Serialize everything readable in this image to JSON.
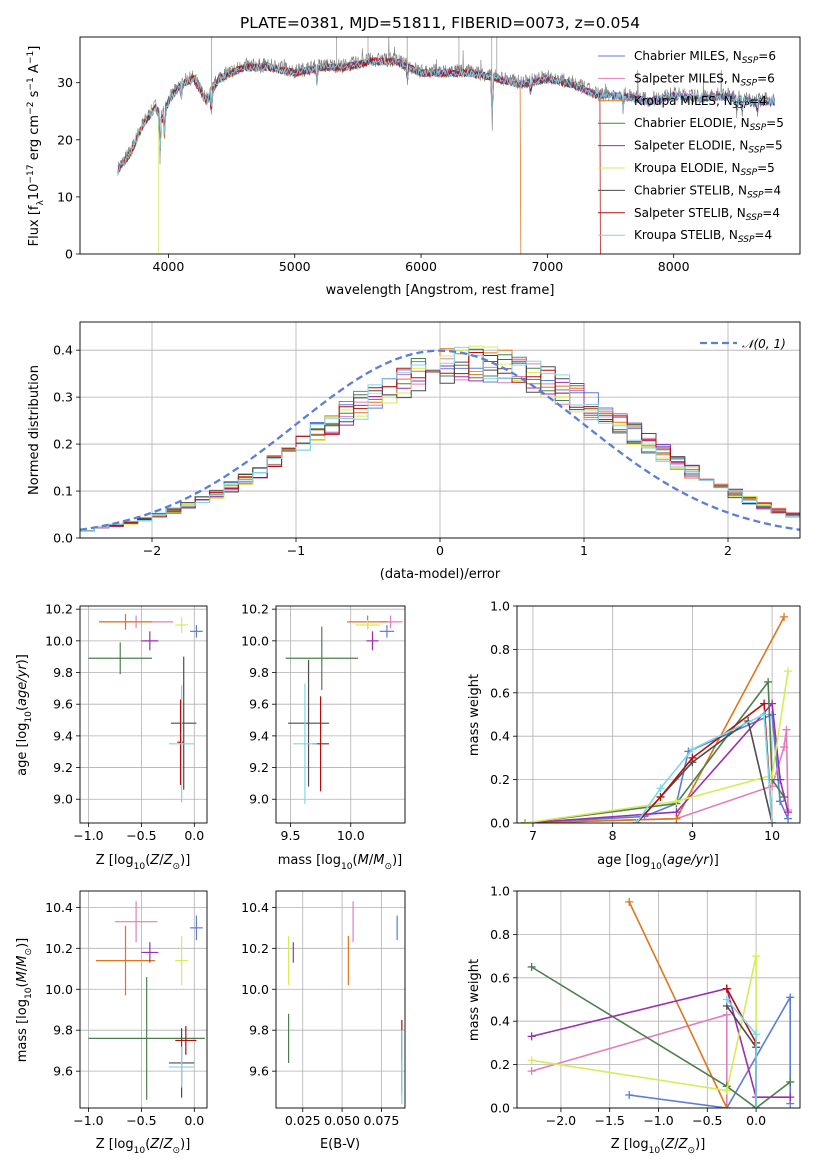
{
  "figure": {
    "title": "PLATE=0381, MJD=51811, FIBERID=0073, z=0.054"
  },
  "colors": {
    "Chabrier MILES": "#5b7fd6",
    "Salpeter MILES": "#e27dbc",
    "Kroupa MILES": "#e0761c",
    "Chabrier ELODIE": "#4e7f4e",
    "Salpeter ELODIE": "#9b2fae",
    "Kroupa ELODIE": "#d6ec58",
    "Chabrier STELIB": "#4d4d4d",
    "Salpeter STELIB": "#b30f0f",
    "Kroupa STELIB": "#7fd6e8",
    "data": "#808080",
    "normal_curve": "#5b7fd6"
  },
  "chart_data": [
    {
      "id": "spectrum",
      "type": "line",
      "xlabel": "wavelength [Angstrom, rest frame]",
      "ylabel": "Flux [f",
      "xlim": [
        3300,
        9000
      ],
      "ylim": [
        0,
        38
      ],
      "xticks": [
        4000,
        5000,
        6000,
        7000,
        8000
      ],
      "yticks": [
        0,
        10,
        20,
        30
      ],
      "grid": false,
      "legend_position": "top-right",
      "legend": [
        {
          "name": "Chabrier MILES",
          "nssp": "6"
        },
        {
          "name": "Salpeter MILES",
          "nssp": "6"
        },
        {
          "name": "Kroupa MILES",
          "nssp": "4"
        },
        {
          "name": "Chabrier ELODIE",
          "nssp": "5"
        },
        {
          "name": "Salpeter ELODIE",
          "nssp": "5"
        },
        {
          "name": "Kroupa ELODIE",
          "nssp": "5"
        },
        {
          "name": "Chabrier STELIB",
          "nssp": "4"
        },
        {
          "name": "Salpeter STELIB",
          "nssp": "4"
        },
        {
          "name": "Kroupa STELIB",
          "nssp": "4"
        }
      ],
      "data_envelope": {
        "x": [
          3600,
          3700,
          3800,
          3900,
          3950,
          4000,
          4100,
          4200,
          4300,
          4400,
          4500,
          4600,
          4800,
          5000,
          5200,
          5400,
          5600,
          5800,
          6000,
          6200,
          6400,
          6600,
          6800,
          7000,
          7200,
          7400,
          7600,
          7800,
          8000,
          8200,
          8400,
          8600,
          8800
        ],
        "y": [
          15,
          18,
          23,
          26,
          24,
          27,
          30,
          31,
          27,
          31,
          32,
          33,
          33,
          32,
          33,
          33,
          34,
          34,
          32,
          32,
          32,
          31,
          30,
          31,
          30,
          28,
          28,
          27,
          28,
          27.5,
          28,
          27,
          27
        ]
      },
      "model_cutoffs": [
        {
          "name": "Kroupa ELODIE",
          "end_x": 3920
        },
        {
          "name": "Kroupa MILES",
          "end_x": 6790
        },
        {
          "name": "Salpeter STELIB",
          "end_x": 7420
        }
      ]
    },
    {
      "id": "residuals",
      "type": "line",
      "xlabel": "(data-model)/error",
      "ylabel": "Normed distribution",
      "xlim": [
        -2.5,
        2.5
      ],
      "ylim": [
        0,
        0.46
      ],
      "xticks": [
        -2,
        -1,
        0,
        1,
        2
      ],
      "yticks": [
        0.0,
        0.1,
        0.2,
        0.3,
        0.4
      ],
      "grid": true,
      "legend_position": "top-right",
      "normal_label": "𝒩(0, 1)",
      "normal": {
        "mu": 0,
        "sigma": 1
      },
      "hist_bin_width": 0.1,
      "hist_bins_from": -2.5,
      "hist_center": 0.25,
      "hist_sigma": 1.09
    },
    {
      "id": "age_vs_Z",
      "type": "scatter",
      "xlabel": "Z [log",
      "ylabel": "age  [log",
      "xlim": [
        -1.08,
        0.12
      ],
      "ylim": [
        8.85,
        10.22
      ],
      "xticks": [
        -1.0,
        -0.5,
        0.0
      ],
      "yticks": [
        9.0,
        9.2,
        9.4,
        9.6,
        9.8,
        10.0,
        10.2
      ],
      "grid": true,
      "points": [
        {
          "name": "Chabrier MILES",
          "x": 0.02,
          "y": 10.06,
          "xerr": 0.06,
          "yerr": 0.04
        },
        {
          "name": "Salpeter MILES",
          "x": -0.55,
          "y": 10.12,
          "xerr": 0.35,
          "yerr": 0.04
        },
        {
          "name": "Kroupa MILES",
          "x": -0.65,
          "y": 10.12,
          "xerr": 0.25,
          "yerr": 0.05
        },
        {
          "name": "Chabrier ELODIE",
          "x": -0.7,
          "y": 9.89,
          "xerr": 0.3,
          "yerr": 0.1
        },
        {
          "name": "Salpeter ELODIE",
          "x": -0.42,
          "y": 10.0,
          "xerr": 0.08,
          "yerr": 0.06
        },
        {
          "name": "Kroupa ELODIE",
          "x": -0.12,
          "y": 10.1,
          "xerr": 0.06,
          "yerr": 0.05
        },
        {
          "name": "Chabrier STELIB",
          "x": -0.1,
          "y": 9.48,
          "xerr": 0.12,
          "yerr": 0.42
        },
        {
          "name": "Salpeter STELIB",
          "x": -0.13,
          "y": 9.36,
          "xerr": 0.03,
          "yerr": 0.27
        },
        {
          "name": "Kroupa STELIB",
          "x": -0.12,
          "y": 9.35,
          "xerr": 0.12,
          "yerr": 0.37
        }
      ]
    },
    {
      "id": "age_vs_mass",
      "type": "scatter",
      "xlabel": "mass [log",
      "ylabel": "",
      "xlim": [
        9.38,
        10.45
      ],
      "ylim": [
        8.85,
        10.22
      ],
      "xticks": [
        9.5,
        10.0
      ],
      "yticks": [
        9.0,
        9.2,
        9.4,
        9.6,
        9.8,
        10.0,
        10.2
      ],
      "grid": true,
      "points": [
        {
          "name": "Chabrier MILES",
          "x": 10.3,
          "y": 10.06,
          "xerr": 0.06,
          "yerr": 0.04
        },
        {
          "name": "Salpeter MILES",
          "x": 10.33,
          "y": 10.12,
          "xerr": 0.1,
          "yerr": 0.04
        },
        {
          "name": "Kroupa MILES",
          "x": 10.14,
          "y": 10.12,
          "xerr": 0.17,
          "yerr": 0.04
        },
        {
          "name": "Chabrier ELODIE",
          "x": 9.76,
          "y": 9.89,
          "xerr": 0.3,
          "yerr": 0.2
        },
        {
          "name": "Salpeter ELODIE",
          "x": 10.18,
          "y": 10.0,
          "xerr": 0.05,
          "yerr": 0.06
        },
        {
          "name": "Kroupa ELODIE",
          "x": 10.14,
          "y": 10.1,
          "xerr": 0.1,
          "yerr": 0.03
        },
        {
          "name": "Chabrier STELIB",
          "x": 9.65,
          "y": 9.48,
          "xerr": 0.17,
          "yerr": 0.4
        },
        {
          "name": "Salpeter STELIB",
          "x": 9.75,
          "y": 9.35,
          "xerr": 0.07,
          "yerr": 0.3
        },
        {
          "name": "Kroupa STELIB",
          "x": 9.62,
          "y": 9.35,
          "xerr": 0.1,
          "yerr": 0.38
        }
      ]
    },
    {
      "id": "weight_vs_age",
      "type": "line",
      "xlabel": "age  [log",
      "ylabel": "mass weight",
      "xlim": [
        6.8,
        10.35
      ],
      "ylim": [
        0,
        1.0
      ],
      "xticks": [
        7,
        8,
        9,
        10
      ],
      "yticks": [
        0.0,
        0.2,
        0.4,
        0.6,
        0.8,
        1.0
      ],
      "grid": true,
      "series": [
        {
          "name": "Chabrier MILES",
          "x": [
            6.9,
            8.4,
            8.8,
            8.95,
            10.0,
            10.1,
            10.2
          ],
          "y": [
            0.0,
            0.03,
            0.09,
            0.33,
            0.5,
            0.1,
            0.02
          ]
        },
        {
          "name": "Salpeter MILES",
          "x": [
            6.9,
            8.8,
            10.0,
            10.15,
            10.18,
            10.2
          ],
          "y": [
            0.0,
            0.02,
            0.17,
            0.35,
            0.43,
            0.06
          ]
        },
        {
          "name": "Kroupa MILES",
          "x": [
            6.9,
            8.8,
            10.15
          ],
          "y": [
            0.0,
            0.02,
            0.95
          ]
        },
        {
          "name": "Chabrier ELODIE",
          "x": [
            6.9,
            8.8,
            9.95,
            10.0,
            10.15
          ],
          "y": [
            0.0,
            0.09,
            0.65,
            0.2,
            0.12
          ]
        },
        {
          "name": "Salpeter ELODIE",
          "x": [
            6.9,
            8.8,
            10.0,
            10.1,
            10.2
          ],
          "y": [
            0.0,
            0.05,
            0.55,
            0.2,
            0.05
          ]
        },
        {
          "name": "Kroupa ELODIE",
          "x": [
            6.9,
            8.8,
            10.0,
            10.2
          ],
          "y": [
            0.0,
            0.1,
            0.22,
            0.7
          ]
        },
        {
          "name": "Chabrier STELIB",
          "x": [
            8.3,
            9.0,
            9.7,
            10.0
          ],
          "y": [
            0.0,
            0.28,
            0.47,
            0.0
          ]
        },
        {
          "name": "Salpeter STELIB",
          "x": [
            8.3,
            8.6,
            9.0,
            9.9,
            10.0
          ],
          "y": [
            0.0,
            0.12,
            0.3,
            0.55,
            0.0
          ]
        },
        {
          "name": "Kroupa STELIB",
          "x": [
            8.3,
            8.6,
            9.0,
            9.9,
            10.0
          ],
          "y": [
            0.0,
            0.16,
            0.34,
            0.5,
            0.0
          ]
        }
      ]
    },
    {
      "id": "mass_vs_Z",
      "type": "scatter",
      "xlabel": "Z [log",
      "ylabel": "mass [log",
      "xlim": [
        -1.08,
        0.12
      ],
      "ylim": [
        9.42,
        10.48
      ],
      "xticks": [
        -1.0,
        -0.5,
        0.0
      ],
      "yticks": [
        9.6,
        9.8,
        10.0,
        10.2,
        10.4
      ],
      "grid": true,
      "points": [
        {
          "name": "Chabrier MILES",
          "x": 0.02,
          "y": 10.3,
          "xerr": 0.06,
          "yerr": 0.06
        },
        {
          "name": "Salpeter MILES",
          "x": -0.55,
          "y": 10.33,
          "xerr": 0.2,
          "yerr": 0.1
        },
        {
          "name": "Kroupa MILES",
          "x": -0.65,
          "y": 10.14,
          "xerr": 0.28,
          "yerr": 0.17
        },
        {
          "name": "Chabrier ELODIE",
          "x": -0.45,
          "y": 9.76,
          "xerr": 0.55,
          "yerr": 0.3
        },
        {
          "name": "Salpeter ELODIE",
          "x": -0.42,
          "y": 10.18,
          "xerr": 0.08,
          "yerr": 0.05
        },
        {
          "name": "Kroupa ELODIE",
          "x": -0.12,
          "y": 10.14,
          "xerr": 0.06,
          "yerr": 0.12
        },
        {
          "name": "Chabrier STELIB",
          "x": -0.12,
          "y": 9.64,
          "xerr": 0.12,
          "yerr": 0.17
        },
        {
          "name": "Salpeter STELIB",
          "x": -0.08,
          "y": 9.75,
          "xerr": 0.1,
          "yerr": 0.07
        },
        {
          "name": "Kroupa STELIB",
          "x": -0.12,
          "y": 9.62,
          "xerr": 0.12,
          "yerr": 0.1
        }
      ]
    },
    {
      "id": "mass_vs_ebv",
      "type": "scatter",
      "xlabel": "E(B-V)",
      "ylabel": "",
      "xlim": [
        0.008,
        0.09
      ],
      "ylim": [
        9.42,
        10.48
      ],
      "xticks": [
        0.025,
        0.05,
        0.075
      ],
      "xticklabels": [
        "0.025",
        "0.050",
        "0.075"
      ],
      "yticks": [
        9.6,
        9.8,
        10.0,
        10.2,
        10.4
      ],
      "grid": true,
      "points": [
        {
          "name": "Chabrier MILES",
          "x": 0.085,
          "y": 10.3,
          "xerr": 0,
          "yerr": 0.06
        },
        {
          "name": "Salpeter MILES",
          "x": 0.057,
          "y": 10.33,
          "xerr": 0,
          "yerr": 0.1
        },
        {
          "name": "Kroupa MILES",
          "x": 0.054,
          "y": 10.14,
          "xerr": 0,
          "yerr": 0.12
        },
        {
          "name": "Chabrier ELODIE",
          "x": 0.016,
          "y": 9.76,
          "xerr": 0,
          "yerr": 0.12
        },
        {
          "name": "Salpeter ELODIE",
          "x": 0.019,
          "y": 10.18,
          "xerr": 0,
          "yerr": 0.05
        },
        {
          "name": "Kroupa ELODIE",
          "x": 0.016,
          "y": 10.14,
          "xerr": 0,
          "yerr": 0.12
        },
        {
          "name": "Chabrier STELIB",
          "x": 0.088,
          "y": 9.64,
          "xerr": 0,
          "yerr": 0.15
        },
        {
          "name": "Salpeter STELIB",
          "x": 0.088,
          "y": 9.75,
          "xerr": 0,
          "yerr": 0.1
        },
        {
          "name": "Kroupa STELIB",
          "x": 0.088,
          "y": 9.62,
          "xerr": 0,
          "yerr": 0.18
        }
      ]
    },
    {
      "id": "weight_vs_Z",
      "type": "line",
      "xlabel": "Z [log",
      "ylabel": "mass weight",
      "xlim": [
        -2.45,
        0.45
      ],
      "ylim": [
        0,
        1.0
      ],
      "xticks": [
        -2.0,
        -1.5,
        -1.0,
        -0.5,
        0.0
      ],
      "yticks": [
        0.0,
        0.2,
        0.4,
        0.6,
        0.8,
        1.0
      ],
      "grid": true,
      "series": [
        {
          "name": "Chabrier MILES",
          "x": [
            -1.3,
            -0.3,
            0.35,
            0.35
          ],
          "y": [
            0.06,
            0.0,
            0.51,
            0.02
          ]
        },
        {
          "name": "Salpeter MILES",
          "x": [
            -2.3,
            -0.3,
            -0.3
          ],
          "y": [
            0.17,
            0.43,
            0.0
          ]
        },
        {
          "name": "Kroupa MILES",
          "x": [
            -1.3,
            -0.3
          ],
          "y": [
            0.95,
            0.0
          ]
        },
        {
          "name": "Chabrier ELODIE",
          "x": [
            -2.3,
            -0.3,
            0.0,
            0.35
          ],
          "y": [
            0.65,
            0.1,
            0.0,
            0.12
          ]
        },
        {
          "name": "Salpeter ELODIE",
          "x": [
            -2.3,
            -0.3,
            0.0,
            0.35
          ],
          "y": [
            0.33,
            0.55,
            0.05,
            0.05
          ]
        },
        {
          "name": "Kroupa ELODIE",
          "x": [
            -2.3,
            -0.3,
            0.0,
            0.0
          ],
          "y": [
            0.22,
            0.08,
            0.7,
            0.0
          ]
        },
        {
          "name": "Chabrier STELIB",
          "x": [
            -0.3,
            0.0,
            0.0
          ],
          "y": [
            0.47,
            0.28,
            0.0
          ]
        },
        {
          "name": "Salpeter STELIB",
          "x": [
            -0.3,
            0.0,
            0.0
          ],
          "y": [
            0.55,
            0.3,
            0.0
          ]
        },
        {
          "name": "Kroupa STELIB",
          "x": [
            -0.3,
            0.0,
            0.0
          ],
          "y": [
            0.5,
            0.34,
            0.0
          ]
        }
      ]
    }
  ]
}
